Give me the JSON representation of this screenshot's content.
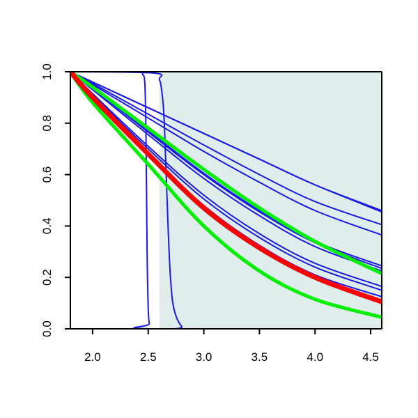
{
  "chart_data": {
    "type": "line",
    "title": "",
    "xlabel": "",
    "ylabel": "",
    "xlim": [
      1.8,
      4.6
    ],
    "ylim": [
      0.0,
      1.0
    ],
    "xticks": [
      2.0,
      2.5,
      3.0,
      3.5,
      4.0,
      4.5
    ],
    "xtick_labels": [
      "2.0",
      "2.5",
      "3.0",
      "3.5",
      "4.0",
      "4.5"
    ],
    "yticks": [
      0.0,
      0.2,
      0.4,
      0.6,
      0.8,
      1.0
    ],
    "ytick_labels": [
      "0.0",
      "0.2",
      "0.4",
      "0.6",
      "0.8",
      "1.0"
    ],
    "grid": false,
    "legend": "none",
    "shaded_region": {
      "x": [
        2.6,
        4.6
      ],
      "color": "#e0eded"
    },
    "colors": {
      "blue": "#1a1ae6",
      "red": "#ff0000",
      "green": "#00ee00",
      "axis": "#000000"
    },
    "series": [
      {
        "color": "blue",
        "x": [
          1.8,
          2.0,
          2.5,
          3.0,
          3.5,
          4.0,
          4.6
        ],
        "y": [
          1.0,
          0.96,
          0.86,
          0.76,
          0.66,
          0.56,
          0.455
        ]
      },
      {
        "color": "blue",
        "x": [
          1.8,
          2.0,
          2.5,
          3.0,
          3.5,
          4.0,
          4.6
        ],
        "y": [
          1.0,
          0.96,
          0.86,
          0.76,
          0.66,
          0.56,
          0.46
        ]
      },
      {
        "color": "blue",
        "x": [
          1.8,
          2.0,
          2.5,
          3.0,
          3.5,
          4.0,
          4.6
        ],
        "y": [
          1.0,
          0.955,
          0.835,
          0.715,
          0.6,
          0.495,
          0.405
        ]
      },
      {
        "color": "blue",
        "x": [
          1.8,
          2.0,
          2.5,
          3.0,
          3.5,
          4.0,
          4.6
        ],
        "y": [
          1.0,
          0.95,
          0.82,
          0.69,
          0.57,
          0.46,
          0.365
        ]
      },
      {
        "color": "blue",
        "x": [
          1.8,
          2.0,
          2.5,
          3.0,
          3.5,
          4.0,
          4.6
        ],
        "y": [
          1.0,
          0.935,
          0.77,
          0.605,
          0.46,
          0.34,
          0.245
        ]
      },
      {
        "color": "blue",
        "x": [
          1.8,
          2.0,
          2.5,
          3.0,
          3.5,
          4.0,
          4.6
        ],
        "y": [
          1.0,
          0.935,
          0.765,
          0.6,
          0.455,
          0.335,
          0.235
        ]
      },
      {
        "color": "blue",
        "x": [
          1.8,
          2.0,
          2.5,
          3.0,
          3.5,
          4.0,
          4.6
        ],
        "y": [
          1.0,
          0.93,
          0.755,
          0.585,
          0.44,
          0.32,
          0.225
        ]
      },
      {
        "color": "blue",
        "x": [
          1.8,
          2.0,
          2.5,
          3.0,
          3.5,
          4.0,
          4.6
        ],
        "y": [
          1.0,
          0.915,
          0.71,
          0.52,
          0.37,
          0.255,
          0.165
        ]
      },
      {
        "color": "blue",
        "x": [
          1.8,
          2.0,
          2.5,
          3.0,
          3.5,
          4.0,
          4.6
        ],
        "y": [
          1.0,
          0.91,
          0.7,
          0.505,
          0.355,
          0.24,
          0.15
        ]
      },
      {
        "color": "blue",
        "x": [
          1.8,
          2.0,
          2.5,
          3.0,
          3.5,
          4.0,
          4.6
        ],
        "y": [
          1.0,
          0.905,
          0.685,
          0.48,
          0.325,
          0.21,
          0.125
        ]
      },
      {
        "color": "blue",
        "x": [
          1.8,
          2.0,
          2.5,
          3.0,
          3.5,
          4.0,
          4.6
        ],
        "y": [
          1.0,
          0.9,
          0.675,
          0.465,
          0.31,
          0.195,
          0.11
        ]
      },
      {
        "color": "blue",
        "x": [
          1.8,
          2.4,
          2.45,
          2.47,
          2.48,
          2.49,
          2.5,
          2.51,
          2.53,
          4.6
        ],
        "y": [
          1.0,
          1.0,
          0.99,
          0.95,
          0.75,
          0.3,
          0.08,
          0.02,
          0.0,
          0.0
        ]
      },
      {
        "color": "blue",
        "x": [
          1.8,
          2.55,
          2.6,
          2.62,
          2.64,
          2.66,
          2.68,
          2.7,
          2.73,
          2.8,
          2.9,
          4.6
        ],
        "y": [
          1.0,
          0.995,
          0.97,
          0.93,
          0.84,
          0.62,
          0.38,
          0.2,
          0.08,
          0.01,
          0.0,
          0.0
        ]
      },
      {
        "color": "green",
        "x": [
          1.8,
          2.0,
          2.5,
          3.0,
          3.5,
          4.0,
          4.6
        ],
        "y": [
          1.0,
          0.94,
          0.78,
          0.62,
          0.47,
          0.34,
          0.215
        ]
      },
      {
        "color": "green",
        "x": [
          1.8,
          2.0,
          2.5,
          3.0,
          3.5,
          4.0,
          4.6
        ],
        "y": [
          1.0,
          0.88,
          0.64,
          0.4,
          0.225,
          0.115,
          0.045
        ]
      },
      {
        "color": "red",
        "x": [
          1.8,
          2.0,
          2.5,
          3.0,
          3.5,
          4.0,
          4.6
        ],
        "y": [
          1.0,
          0.9,
          0.68,
          0.47,
          0.315,
          0.2,
          0.105
        ]
      }
    ]
  }
}
